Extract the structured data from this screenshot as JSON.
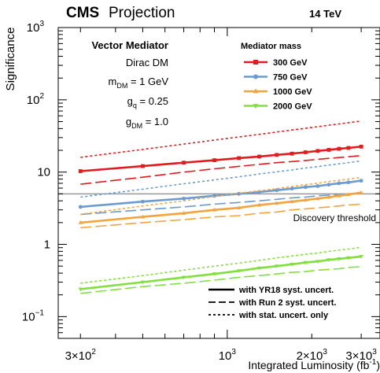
{
  "chart_data": {
    "type": "line",
    "experiment": "CMS",
    "label": "Projection",
    "energy": "14 TeV",
    "xlabel": "Integrated Luminosity (fb",
    "xlabel_sup": "-1",
    "xlabel_close": ")",
    "ylabel": "Significance",
    "xscale": "log",
    "yscale": "log",
    "xlim": [
      250,
      3500
    ],
    "ylim": [
      0.05,
      1000
    ],
    "x_ticks": [
      {
        "value": 300,
        "mant": "3×10",
        "exp": "2"
      },
      {
        "value": 1000,
        "mant": "10",
        "exp": "3"
      },
      {
        "value": 2000,
        "mant": "2×10",
        "exp": "3"
      },
      {
        "value": 3000,
        "mant": "3×10",
        "exp": "3"
      }
    ],
    "y_ticks": [
      {
        "value": 0.1,
        "mant": "10",
        "exp": "−1"
      },
      {
        "value": 1,
        "mant": "1",
        "exp": ""
      },
      {
        "value": 10,
        "mant": "10",
        "exp": ""
      },
      {
        "value": 100,
        "mant": "10",
        "exp": "2"
      },
      {
        "value": 1000,
        "mant": "10",
        "exp": "3"
      }
    ],
    "info": {
      "title": "Vector Mediator",
      "model": "Dirac DM",
      "m_dm_main": "m",
      "m_dm_sub": "DM",
      "m_dm_val": " = 1 GeV",
      "g_q_main": "g",
      "g_q_sub": "q",
      "g_q_val": " = 0.25",
      "g_dm_main": "g",
      "g_dm_sub": "DM",
      "g_dm_val": " = 1.0"
    },
    "legend_title": "Mediator mass",
    "threshold": {
      "value": 5,
      "label": "Discovery threshold",
      "color": "#999999"
    },
    "x_points": [
      300,
      500,
      700,
      900,
      1100,
      1300,
      1500,
      1700,
      1900,
      2100,
      2300,
      2500,
      2700,
      3000
    ],
    "series": [
      {
        "name": "300 GeV",
        "color": "#e41a1c",
        "marker": "square",
        "yr18": [
          10.3,
          12.1,
          13.5,
          14.6,
          15.6,
          16.4,
          17.3,
          18.0,
          18.8,
          19.6,
          20.3,
          21.0,
          21.6,
          22.5
        ],
        "run2": [
          6.8,
          8.5,
          10.0,
          11.1,
          12.0,
          12.8,
          13.5,
          14.0,
          14.5,
          15.0,
          15.5,
          15.9,
          16.3,
          16.9
        ],
        "stat": [
          16.0,
          20.6,
          24.4,
          27.7,
          30.6,
          33.3,
          35.8,
          38.2,
          40.4,
          42.5,
          44.5,
          46.4,
          48.2,
          50.8
        ]
      },
      {
        "name": "750 GeV",
        "color": "#6b9bd1",
        "marker": "circle",
        "yr18": [
          3.3,
          3.9,
          4.3,
          4.7,
          5.0,
          5.3,
          5.6,
          5.9,
          6.2,
          6.4,
          6.7,
          7.0,
          7.2,
          7.6
        ],
        "run2": [
          2.6,
          3.0,
          3.3,
          3.6,
          3.8,
          4.0,
          4.2,
          4.4,
          4.5,
          4.7,
          4.8,
          4.9,
          5.0,
          5.2
        ],
        "stat": [
          4.5,
          5.8,
          6.9,
          7.8,
          8.6,
          9.4,
          10.1,
          10.7,
          11.4,
          11.9,
          12.5,
          13.0,
          13.5,
          14.3
        ]
      },
      {
        "name": "1000 GeV",
        "color": "#f5a33c",
        "marker": "triangle",
        "yr18": [
          2.0,
          2.4,
          2.7,
          3.0,
          3.2,
          3.5,
          3.7,
          3.9,
          4.1,
          4.3,
          4.5,
          4.7,
          4.9,
          5.2
        ],
        "run2": [
          1.7,
          2.0,
          2.2,
          2.4,
          2.5,
          2.7,
          2.8,
          3.0,
          3.1,
          3.2,
          3.3,
          3.4,
          3.5,
          3.6
        ],
        "stat": [
          2.6,
          3.4,
          4.0,
          4.6,
          5.1,
          5.5,
          5.9,
          6.3,
          6.7,
          7.0,
          7.4,
          7.7,
          8.0,
          8.4
        ]
      },
      {
        "name": "2000 GeV",
        "color": "#80e03c",
        "marker": "triangle-down",
        "yr18": [
          0.24,
          0.3,
          0.35,
          0.39,
          0.43,
          0.47,
          0.5,
          0.53,
          0.56,
          0.58,
          0.61,
          0.63,
          0.65,
          0.68
        ],
        "run2": [
          0.21,
          0.26,
          0.29,
          0.32,
          0.35,
          0.37,
          0.39,
          0.41,
          0.42,
          0.44,
          0.45,
          0.46,
          0.48,
          0.49
        ],
        "stat": [
          0.29,
          0.37,
          0.44,
          0.5,
          0.55,
          0.6,
          0.65,
          0.69,
          0.73,
          0.76,
          0.8,
          0.83,
          0.86,
          0.91
        ]
      }
    ],
    "style_legend": [
      {
        "label": "with YR18 syst. uncert.",
        "dash": "solid"
      },
      {
        "label": "with Run 2 syst. uncert.",
        "dash": "dashed"
      },
      {
        "label": "with stat. uncert. only",
        "dash": "dotted"
      }
    ],
    "grid": false,
    "legend_position": "top-right"
  }
}
